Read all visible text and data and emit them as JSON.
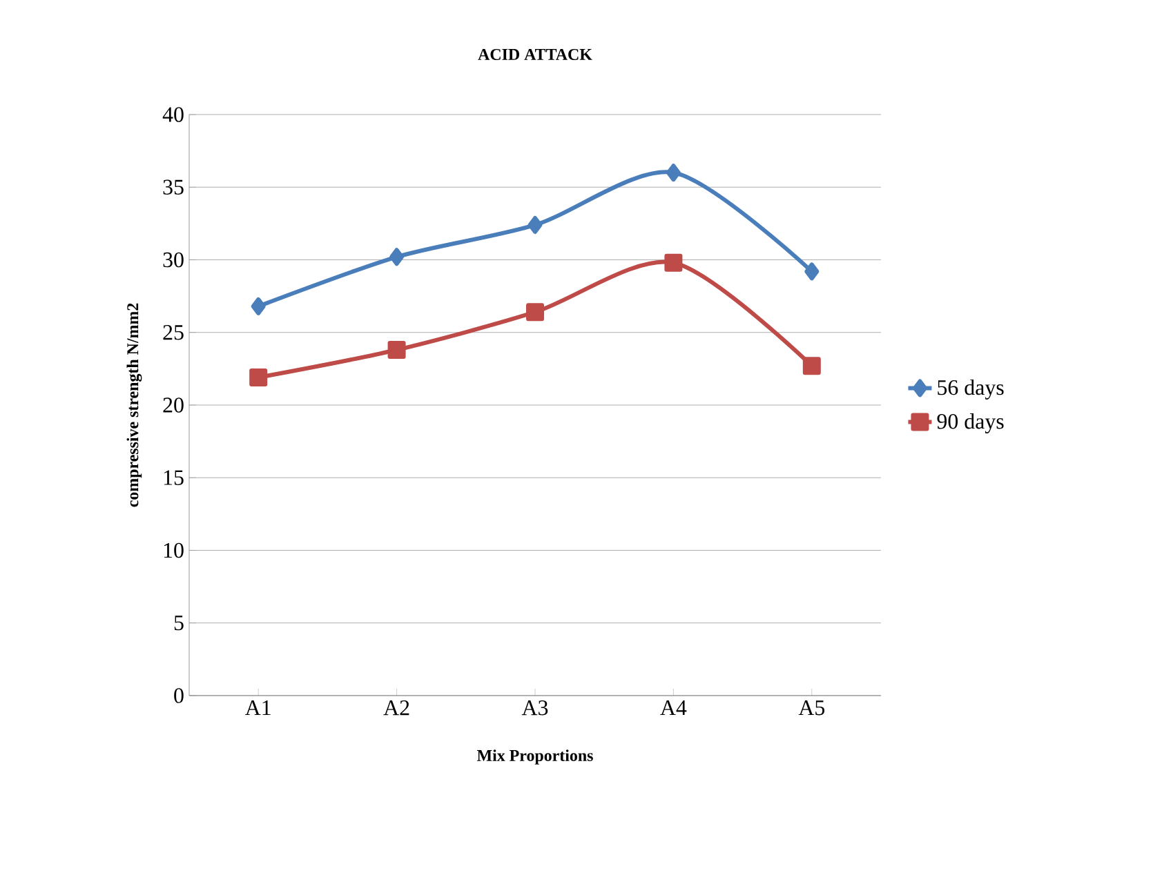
{
  "chart_data": {
    "type": "line",
    "title": "ACID ATTACK",
    "xlabel": "Mix Proportions",
    "ylabel": "compressive strength N/mm2",
    "categories": [
      "A1",
      "A2",
      "A3",
      "A4",
      "A5"
    ],
    "series": [
      {
        "name": "56 days",
        "color": "#4a7ebb",
        "marker": "diamond",
        "values": [
          26.8,
          30.2,
          32.4,
          36.0,
          29.2
        ]
      },
      {
        "name": "90 days",
        "color": "#be4b48",
        "marker": "square",
        "values": [
          21.9,
          23.8,
          26.4,
          29.8,
          22.7
        ]
      }
    ],
    "ylim": [
      0,
      40
    ],
    "yticks": [
      0,
      5,
      10,
      15,
      20,
      25,
      30,
      35,
      40
    ],
    "grid": "y",
    "legend": "right"
  }
}
